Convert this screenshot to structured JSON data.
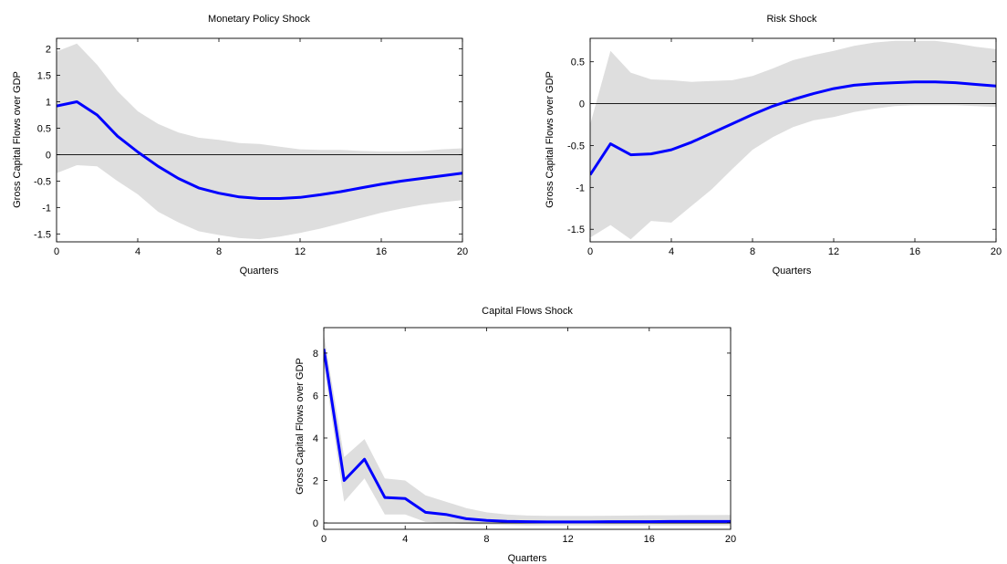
{
  "chart_data": [
    {
      "type": "area",
      "title": "Monetary Policy Shock",
      "xlabel": "Quarters",
      "ylabel": "Gross Capital Flows over GDP",
      "xlim": [
        0,
        20
      ],
      "ylim": [
        -1.65,
        2.2
      ],
      "xticks": [
        0,
        4,
        8,
        12,
        16,
        20
      ],
      "yticks": [
        -1.5,
        -1,
        -0.5,
        0,
        0.5,
        1,
        1.5,
        2
      ],
      "ytick_labels": [
        "-1.5",
        "-1",
        "-0.5",
        "0",
        "0.5",
        "1",
        "1.5",
        "2"
      ],
      "x": [
        0,
        1,
        2,
        3,
        4,
        5,
        6,
        7,
        8,
        9,
        10,
        11,
        12,
        13,
        14,
        15,
        16,
        17,
        18,
        19,
        20
      ],
      "series": [
        {
          "role": "median",
          "color": "#0000ff",
          "values": [
            0.92,
            1.0,
            0.75,
            0.35,
            0.05,
            -0.22,
            -0.45,
            -0.63,
            -0.73,
            -0.8,
            -0.83,
            -0.83,
            -0.81,
            -0.76,
            -0.7,
            -0.63,
            -0.56,
            -0.5,
            -0.45,
            -0.4,
            -0.35
          ]
        },
        {
          "role": "band",
          "color": "#dedede",
          "upper": [
            1.95,
            2.1,
            1.7,
            1.2,
            0.82,
            0.58,
            0.42,
            0.32,
            0.28,
            0.22,
            0.2,
            0.15,
            0.1,
            0.09,
            0.09,
            0.07,
            0.06,
            0.06,
            0.07,
            0.1,
            0.12
          ],
          "lower": [
            -0.35,
            -0.2,
            -0.22,
            -0.5,
            -0.75,
            -1.08,
            -1.28,
            -1.45,
            -1.52,
            -1.58,
            -1.6,
            -1.55,
            -1.48,
            -1.4,
            -1.3,
            -1.2,
            -1.1,
            -1.02,
            -0.95,
            -0.9,
            -0.86
          ]
        }
      ],
      "reference_line": 0
    },
    {
      "type": "area",
      "title": "Risk Shock",
      "xlabel": "Quarters",
      "ylabel": "Gross Capital Flows over GDP",
      "xlim": [
        0,
        20
      ],
      "ylim": [
        -1.65,
        0.78
      ],
      "xticks": [
        0,
        4,
        8,
        12,
        16,
        20
      ],
      "yticks": [
        -1.5,
        -1,
        -0.5,
        0,
        0.5
      ],
      "ytick_labels": [
        "-1.5",
        "-1",
        "-0.5",
        "0",
        "0.5"
      ],
      "x": [
        0,
        1,
        2,
        3,
        4,
        5,
        6,
        7,
        8,
        9,
        10,
        11,
        12,
        13,
        14,
        15,
        16,
        17,
        18,
        19,
        20
      ],
      "series": [
        {
          "role": "median",
          "color": "#0000ff",
          "values": [
            -0.85,
            -0.48,
            -0.61,
            -0.6,
            -0.55,
            -0.46,
            -0.35,
            -0.24,
            -0.13,
            -0.03,
            0.05,
            0.12,
            0.18,
            0.22,
            0.24,
            0.25,
            0.26,
            0.26,
            0.25,
            0.23,
            0.21
          ]
        },
        {
          "role": "band",
          "color": "#dedede",
          "upper": [
            -0.25,
            0.63,
            0.37,
            0.29,
            0.28,
            0.26,
            0.27,
            0.28,
            0.33,
            0.42,
            0.52,
            0.58,
            0.63,
            0.69,
            0.73,
            0.75,
            0.75,
            0.75,
            0.72,
            0.68,
            0.65
          ],
          "lower": [
            -1.6,
            -1.45,
            -1.62,
            -1.4,
            -1.42,
            -1.22,
            -1.02,
            -0.78,
            -0.55,
            -0.4,
            -0.28,
            -0.2,
            -0.16,
            -0.1,
            -0.06,
            -0.03,
            -0.02,
            -0.02,
            -0.02,
            -0.03,
            -0.04
          ]
        }
      ],
      "reference_line": 0
    },
    {
      "type": "area",
      "title": "Capital Flows Shock",
      "xlabel": "Quarters",
      "ylabel": "Gross Capital Flows over GDP",
      "xlim": [
        0,
        20
      ],
      "ylim": [
        -0.3,
        9.2
      ],
      "xticks": [
        0,
        4,
        8,
        12,
        16,
        20
      ],
      "yticks": [
        0,
        2,
        4,
        6,
        8
      ],
      "ytick_labels": [
        "0",
        "2",
        "4",
        "6",
        "8"
      ],
      "x": [
        0,
        1,
        2,
        3,
        4,
        5,
        6,
        7,
        8,
        9,
        10,
        11,
        12,
        13,
        14,
        15,
        16,
        17,
        18,
        19,
        20
      ],
      "series": [
        {
          "role": "median",
          "color": "#0000ff",
          "values": [
            8.2,
            2.0,
            3.0,
            1.2,
            1.15,
            0.5,
            0.4,
            0.2,
            0.12,
            0.08,
            0.06,
            0.05,
            0.05,
            0.05,
            0.06,
            0.06,
            0.06,
            0.07,
            0.07,
            0.07,
            0.07
          ]
        },
        {
          "role": "band",
          "color": "#dedede",
          "upper": [
            8.9,
            3.1,
            3.95,
            2.1,
            2.0,
            1.3,
            1.0,
            0.7,
            0.5,
            0.4,
            0.35,
            0.33,
            0.33,
            0.33,
            0.34,
            0.35,
            0.36,
            0.36,
            0.37,
            0.37,
            0.38
          ],
          "lower": [
            7.5,
            1.0,
            2.1,
            0.4,
            0.4,
            0.05,
            0.0,
            -0.05,
            -0.08,
            -0.1,
            -0.12,
            -0.12,
            -0.12,
            -0.12,
            -0.12,
            -0.12,
            -0.12,
            -0.12,
            -0.12,
            -0.12,
            -0.12
          ]
        }
      ],
      "reference_line": 0
    }
  ]
}
